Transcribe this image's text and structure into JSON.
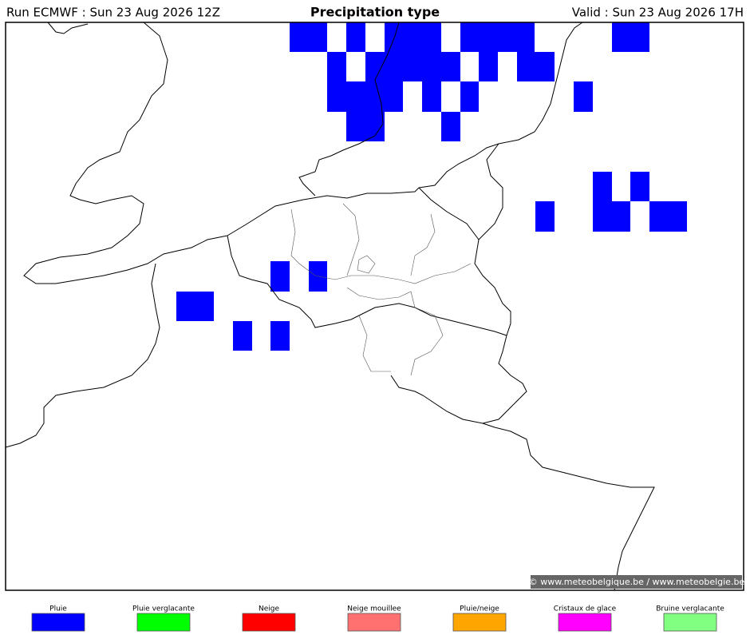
{
  "header": {
    "run": "Run ECMWF : Sun 23 Aug 2026 12Z",
    "title": "Precipitation type",
    "valid": "Valid : Sun 23 Aug 2026 17H"
  },
  "watermark": "© www.meteobelgique.be / www.meteobelgie.be",
  "legend": [
    {
      "label": "Pluie",
      "color": "#0000ff"
    },
    {
      "label": "Pluie verglacante",
      "color": "#00ff00"
    },
    {
      "label": "Neige",
      "color": "#ff0000"
    },
    {
      "label": "Neige mouillee",
      "color": "#ff7070"
    },
    {
      "label": "Pluie/neige",
      "color": "#ffa500"
    },
    {
      "label": "Cristaux de glace",
      "color": "#ff00ff"
    },
    {
      "label": "Bruine verglacante",
      "color": "#80ff80"
    }
  ]
}
